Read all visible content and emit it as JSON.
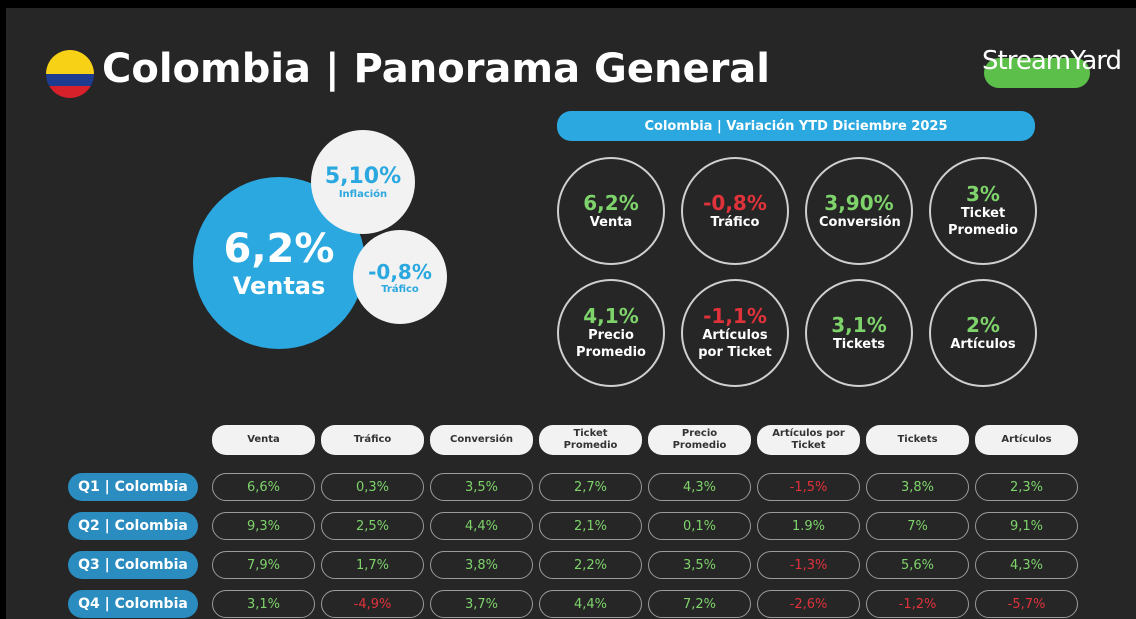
{
  "header": {
    "title": "Colombia | Panorama General",
    "logo": "StreamYard"
  },
  "highlights": {
    "main_value": "6,2%",
    "main_label": "Ventas",
    "inflation_value": "5,10%",
    "inflation_label": "Inflación",
    "traffic_value": "-0,8%",
    "traffic_label": "Tráfico"
  },
  "ytd": {
    "title": "Colombia | Variación YTD Diciembre 2025",
    "metrics": [
      {
        "value": "6,2%",
        "label": "Venta"
      },
      {
        "value": "-0,8%",
        "label": "Tráfico"
      },
      {
        "value": "3,90%",
        "label": "Conversión"
      },
      {
        "value": "3%",
        "label": "Ticket Promedio"
      },
      {
        "value": "4,1%",
        "label": "Precio Promedio"
      },
      {
        "value": "-1,1%",
        "label": "Artículos por Ticket"
      },
      {
        "value": "3,1%",
        "label": "Tickets"
      },
      {
        "value": "2%",
        "label": "Artículos"
      }
    ]
  },
  "table": {
    "columns": [
      "Venta",
      "Tráfico",
      "Conversión",
      "Ticket Promedio",
      "Precio Promedio",
      "Artículos por Ticket",
      "Tickets",
      "Artículos"
    ],
    "rows": [
      {
        "label": "Q1 | Colombia",
        "values": [
          "6,6%",
          "0,3%",
          "3,5%",
          "2,7%",
          "4,3%",
          "-1,5%",
          "3,8%",
          "2,3%"
        ]
      },
      {
        "label": "Q2 | Colombia",
        "values": [
          "9,3%",
          "2,5%",
          "4,4%",
          "2,1%",
          "0,1%",
          "1.9%",
          "7%",
          "9,1%"
        ]
      },
      {
        "label": "Q3 | Colombia",
        "values": [
          "7,9%",
          "1,7%",
          "3,8%",
          "2,2%",
          "3,5%",
          "-1,3%",
          "5,6%",
          "4,3%"
        ]
      },
      {
        "label": "Q4 | Colombia",
        "values": [
          "3,1%",
          "-4,9%",
          "3,7%",
          "4,4%",
          "7,2%",
          "-2,6%",
          "-1,2%",
          "-5,7%"
        ]
      }
    ]
  }
}
